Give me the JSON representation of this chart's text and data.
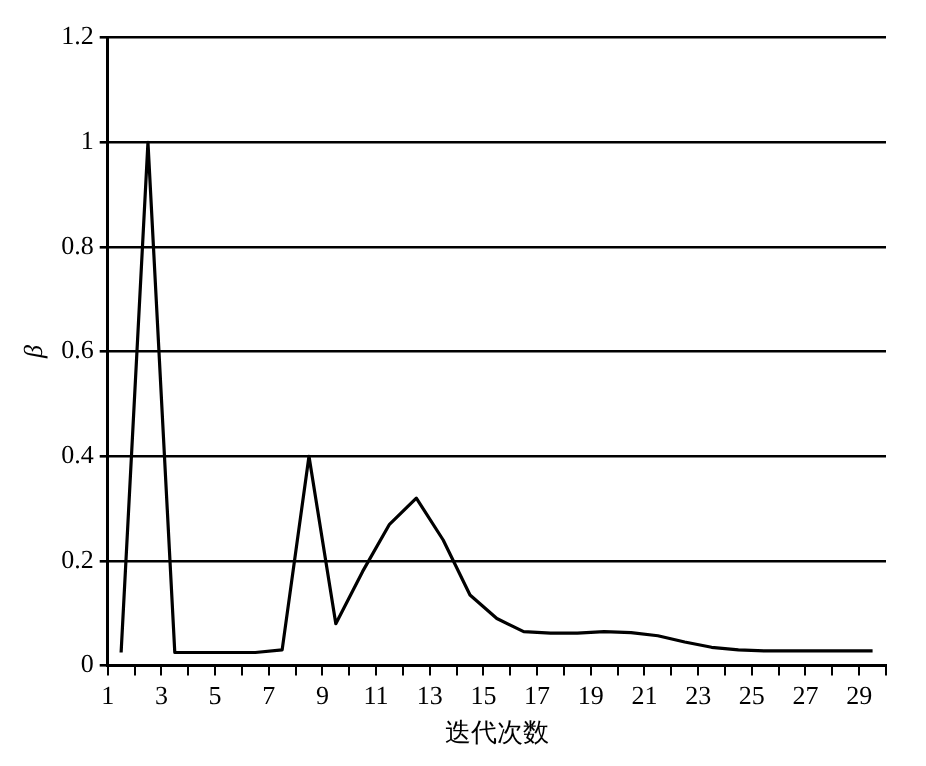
{
  "chart_data": {
    "type": "line",
    "xlabel": "迭代次数",
    "ylabel": "β",
    "x": [
      1.5,
      2.5,
      3.5,
      4.5,
      5.5,
      6.5,
      7.5,
      8.5,
      9.5,
      10.5,
      11.5,
      12.5,
      13.5,
      14.5,
      15.5,
      16.5,
      17.5,
      18.5,
      19.5,
      20.5,
      21.5,
      22.5,
      23.5,
      24.5,
      25.5,
      26.5,
      27.5,
      28.5,
      29.5
    ],
    "series": [
      {
        "color": "#000000",
        "values": [
          0.025,
          1.0,
          0.025,
          0.025,
          0.025,
          0.025,
          0.03,
          0.4,
          0.08,
          0.18,
          0.27,
          0.32,
          0.24,
          0.135,
          0.09,
          0.065,
          0.062,
          0.062,
          0.065,
          0.063,
          0.057,
          0.045,
          0.035,
          0.03,
          0.028,
          0.028,
          0.028,
          0.028,
          0.028
        ]
      }
    ],
    "xlim": [
      1,
      30
    ],
    "xticks": [
      1,
      {
        "value": 2,
        "label": null
      },
      3,
      {
        "value": 4,
        "label": null
      },
      5,
      {
        "value": 6,
        "label": null
      },
      7,
      {
        "value": 8,
        "label": null
      },
      9,
      {
        "value": 10,
        "label": null
      },
      11,
      {
        "value": 12,
        "label": null
      },
      13,
      {
        "value": 14,
        "label": null
      },
      15,
      {
        "value": 16,
        "label": null
      },
      17,
      {
        "value": 18,
        "label": null
      },
      19,
      {
        "value": 20,
        "label": null
      },
      21,
      {
        "value": 22,
        "label": null
      },
      23,
      {
        "value": 24,
        "label": null
      },
      25,
      {
        "value": 26,
        "label": null
      },
      27,
      {
        "value": 28,
        "label": null
      },
      29,
      {
        "value": 30,
        "label": null
      }
    ],
    "ylim": [
      0,
      1.2
    ],
    "yticks": [
      0,
      0.2,
      0.4,
      0.6,
      0.8,
      1,
      1.2
    ],
    "grid": "y",
    "legend": false,
    "marker": "none",
    "line_style": "solid"
  }
}
